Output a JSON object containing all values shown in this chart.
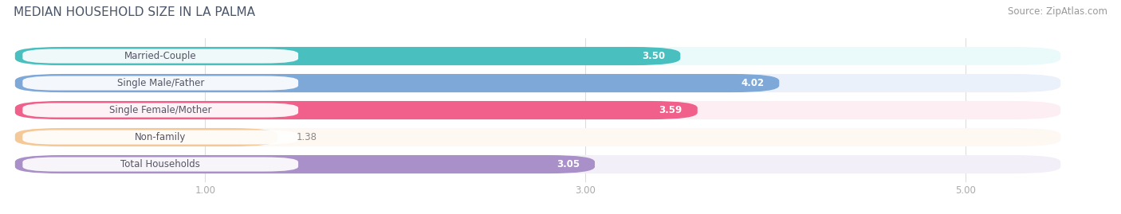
{
  "title": "MEDIAN HOUSEHOLD SIZE IN LA PALMA",
  "source": "Source: ZipAtlas.com",
  "categories": [
    "Married-Couple",
    "Single Male/Father",
    "Single Female/Mother",
    "Non-family",
    "Total Households"
  ],
  "values": [
    3.5,
    4.02,
    3.59,
    1.38,
    3.05
  ],
  "bar_colors": [
    "#49BFBF",
    "#7EA8D8",
    "#F0608A",
    "#F5C898",
    "#A990C8"
  ],
  "bar_bg_colors": [
    "#EAFAFB",
    "#EBF1FA",
    "#FDEEF4",
    "#FEF8F2",
    "#F3EFF9"
  ],
  "value_text_colors": [
    "white",
    "white",
    "white",
    "#999999",
    "#999999"
  ],
  "label_bg_color": "#FFFFFF",
  "xlim_min": 0.0,
  "xlim_max": 5.5,
  "data_min": 0.0,
  "xticks": [
    1.0,
    3.0,
    5.0
  ],
  "xtick_labels": [
    "1.00",
    "3.00",
    "5.00"
  ],
  "label_fontsize": 8.5,
  "value_fontsize": 8.5,
  "title_fontsize": 11,
  "source_fontsize": 8.5,
  "title_color": "#4A5568",
  "source_color": "#999999",
  "tick_color": "#AAAAAA",
  "grid_color": "#DDDDDD"
}
